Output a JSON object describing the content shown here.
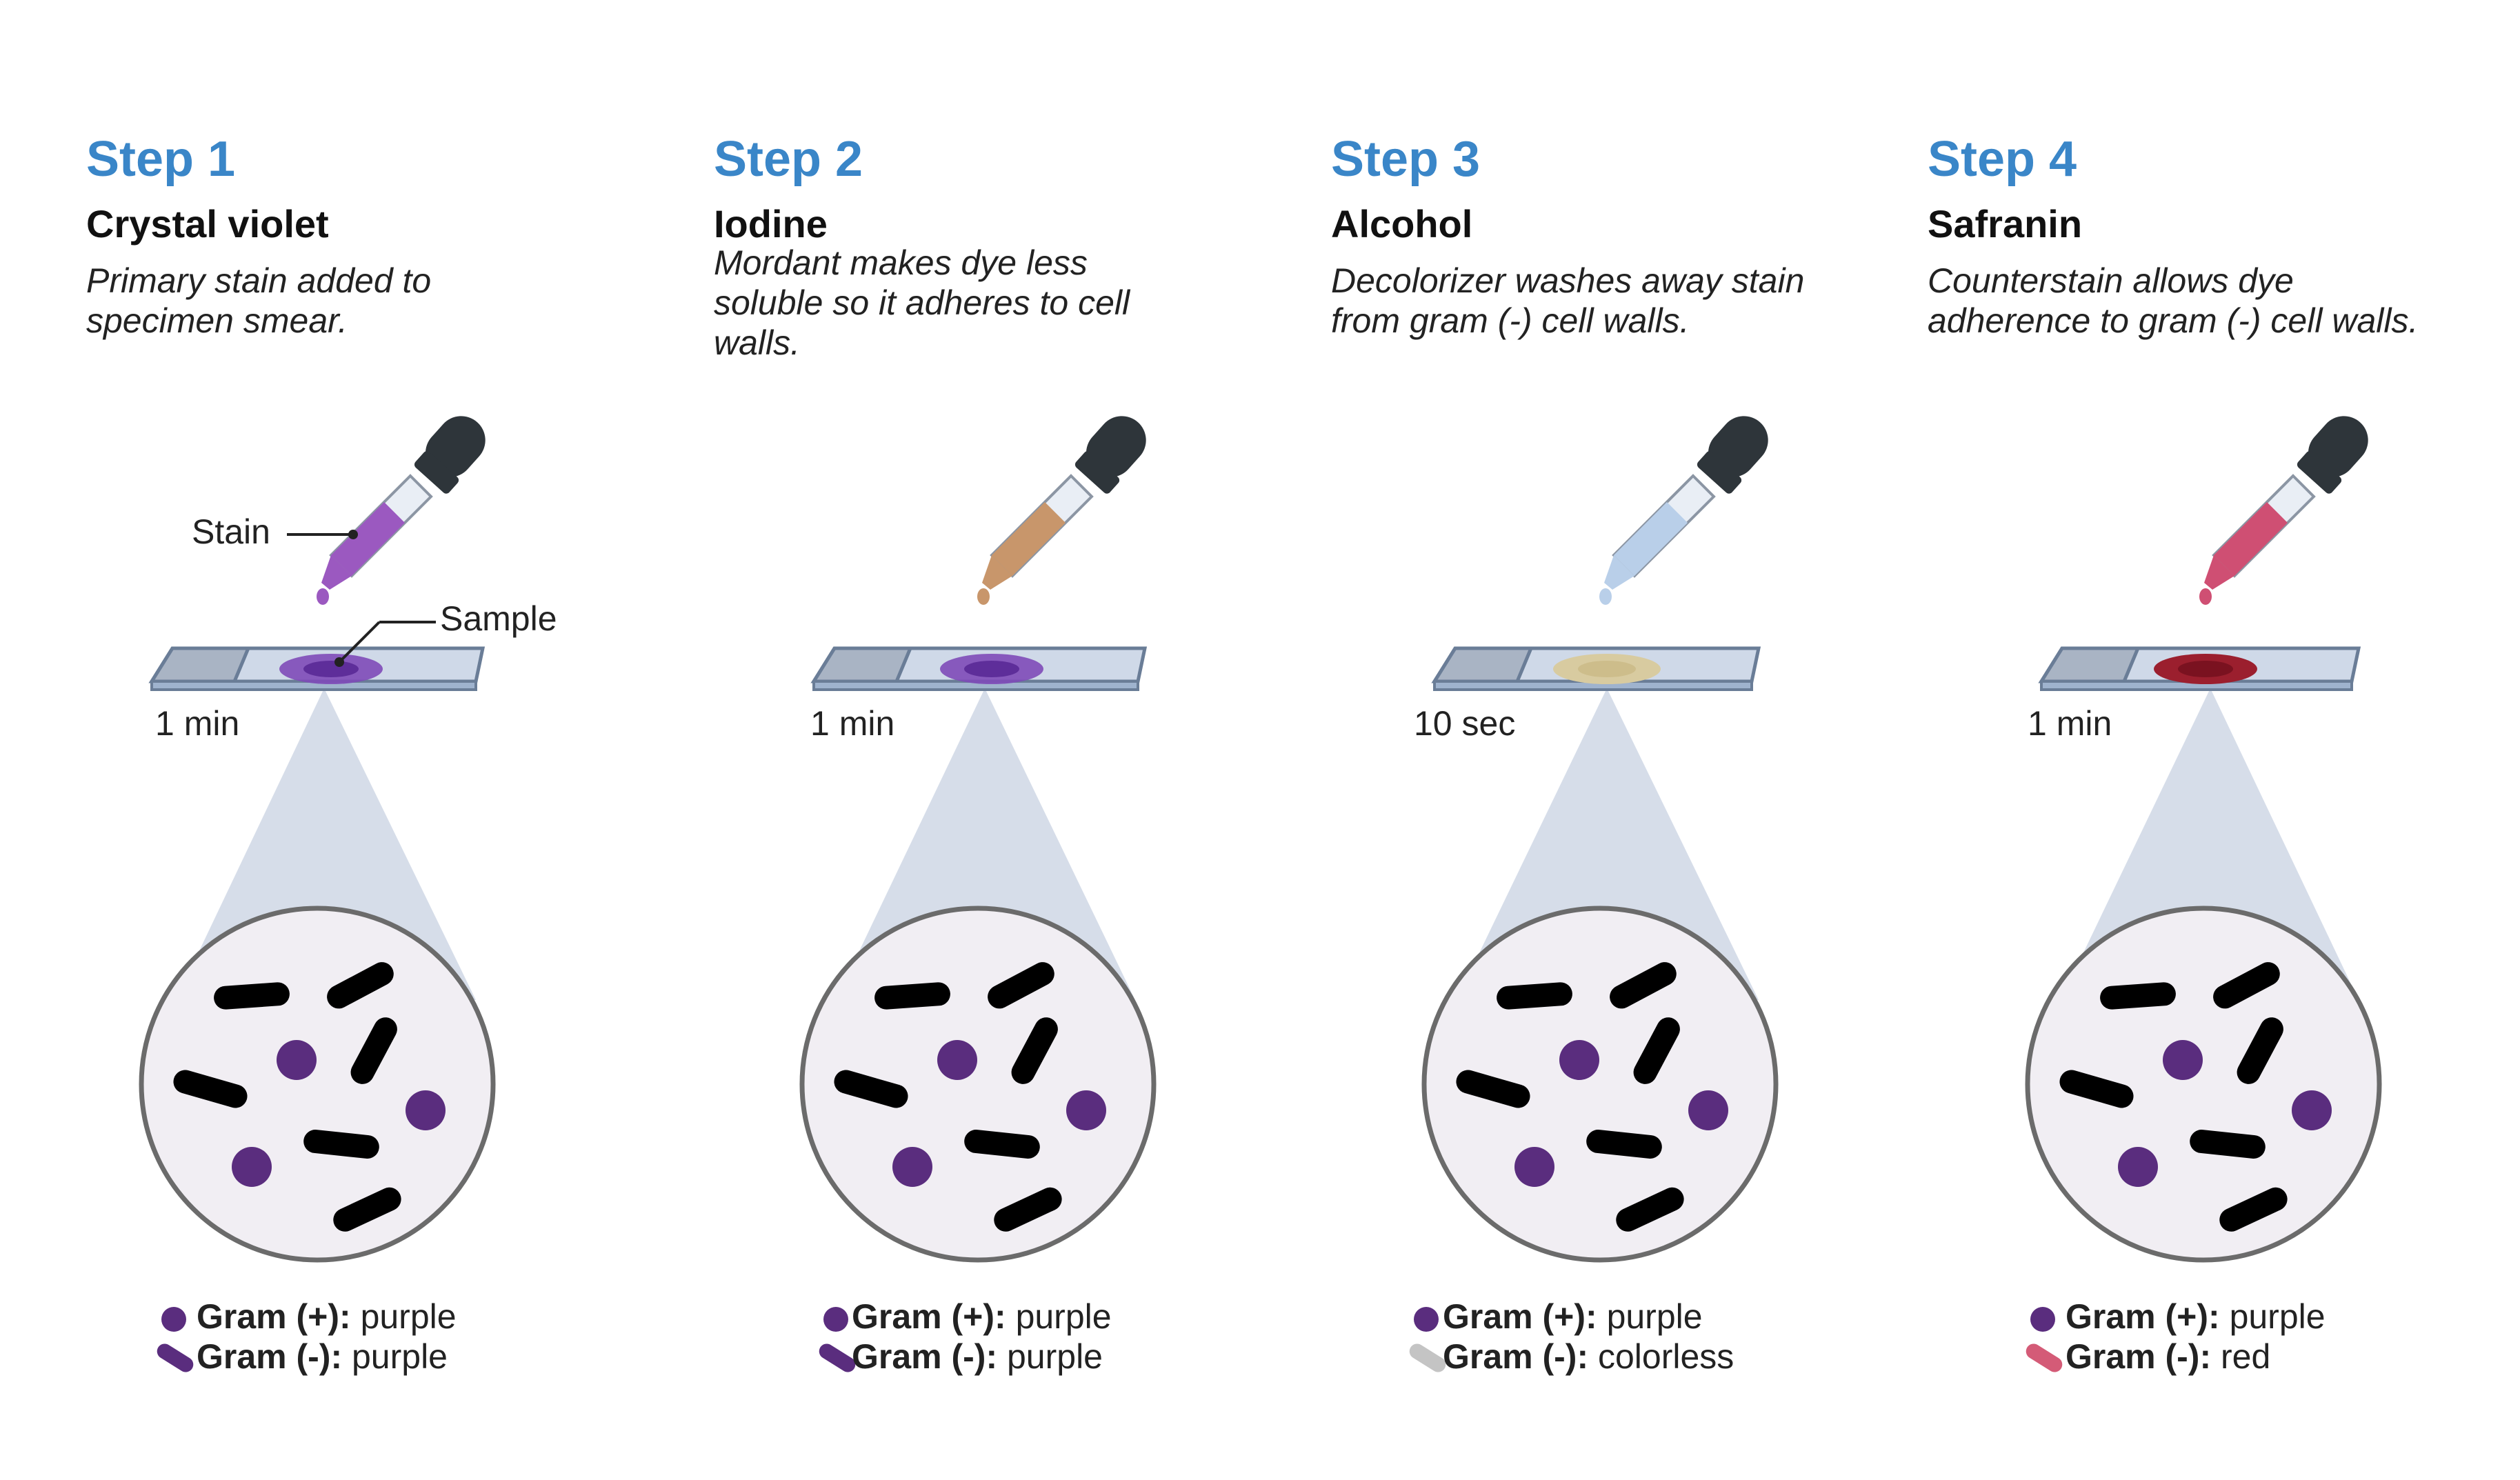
{
  "colors": {
    "title_blue": "#3a86c8",
    "gram_pos_purple": "#5a2d7e",
    "gram_neg_purple": "#5a2d7e",
    "gram_neg_colorless": "#c4c4c4",
    "gram_neg_red": "#d45b77",
    "crystal_violet": "#9b59c0",
    "iodine": "#c8966b",
    "alcohol": "#b9cfe9",
    "safranin": "#cf4f73",
    "beam": "#d6dde9",
    "circle_fill": "#f1eef3"
  },
  "callouts": {
    "stain": "Stain",
    "sample": "Sample"
  },
  "steps": [
    {
      "title": "Step 1",
      "reagent": "Crystal violet",
      "description": "Primary stain added to specimen smear.",
      "time": "1 min",
      "legend": [
        {
          "icon": "gram-positive-coccus-icon",
          "label": "Gram (+):",
          "value": "purple"
        },
        {
          "icon": "gram-negative-rod-icon",
          "label": "Gram (-):",
          "value": "purple"
        }
      ]
    },
    {
      "title": "Step 2",
      "reagent": "Iodine",
      "description": "Mordant makes dye less soluble so it adheres to cell walls.",
      "time": "1 min",
      "legend": [
        {
          "icon": "gram-positive-coccus-icon",
          "label": "Gram (+):",
          "value": "purple"
        },
        {
          "icon": "gram-negative-rod-icon",
          "label": "Gram (-):",
          "value": "purple"
        }
      ]
    },
    {
      "title": "Step 3",
      "reagent": "Alcohol",
      "description": "Decolorizer washes away stain from gram (-) cell walls.",
      "time": "10 sec",
      "legend": [
        {
          "icon": "gram-positive-coccus-icon",
          "label": "Gram (+):",
          "value": "purple"
        },
        {
          "icon": "gram-negative-rod-icon",
          "label": "Gram (-):",
          "value": "colorless"
        }
      ]
    },
    {
      "title": "Step 4",
      "reagent": "Safranin",
      "description": "Counterstain allows dye adherence to gram (-) cell walls.",
      "time": "1 min",
      "legend": [
        {
          "icon": "gram-positive-coccus-icon",
          "label": "Gram (+):",
          "value": "purple"
        },
        {
          "icon": "gram-negative-rod-icon",
          "label": "Gram (-):",
          "value": "red"
        }
      ]
    }
  ]
}
